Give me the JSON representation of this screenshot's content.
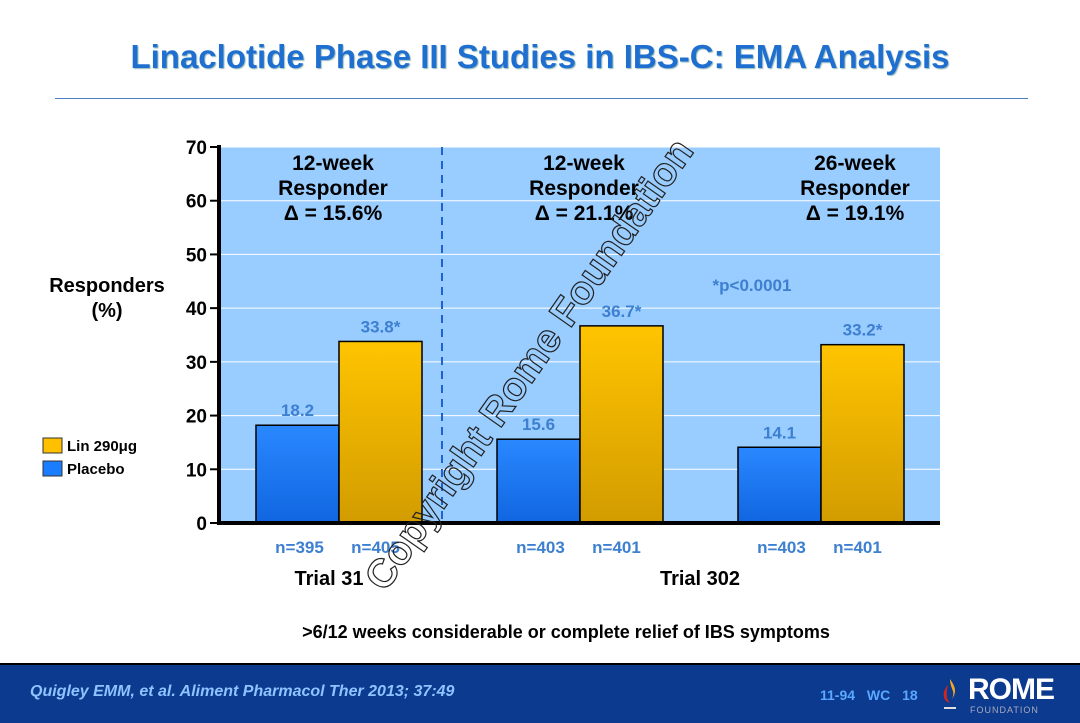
{
  "title": "Linaclotide Phase III Studies in IBS-C: EMA Analysis",
  "chart_data": {
    "type": "bar",
    "ylabel": "Responders (%)",
    "ylabel_lines": [
      "Responders",
      "(%)"
    ],
    "ylim": [
      0,
      70
    ],
    "yticks": [
      0,
      10,
      20,
      30,
      40,
      50,
      60,
      70
    ],
    "grid": true,
    "legend_placement": "left",
    "series": [
      {
        "name": "Placebo",
        "color": "#1a7cff",
        "values": [
          18.2,
          15.6,
          14.1
        ],
        "labels": [
          "18.2",
          "15.6",
          "14.1"
        ],
        "n": [
          "n=395",
          "n=403",
          "n=403"
        ]
      },
      {
        "name": "Lin 290μg",
        "color": "#ffc000",
        "values": [
          33.8,
          36.7,
          33.2
        ],
        "labels": [
          "33.8*",
          "36.7*",
          "33.2*"
        ],
        "n": [
          "n=405",
          "n=401",
          "n=401"
        ]
      }
    ],
    "groups": [
      {
        "lines": [
          "12-week",
          "Responder",
          "Δ = 15.6%"
        ]
      },
      {
        "lines": [
          "12-week",
          "Responder",
          "Δ = 21.1%"
        ]
      },
      {
        "lines": [
          "26-week",
          "Responder",
          "Δ = 19.1%"
        ]
      }
    ],
    "trial_labels": [
      "Trial 31",
      "Trial 302"
    ],
    "annotation": "*p<0.0001",
    "xlabel": ">6/12 weeks considerable or complete relief of IBS symptoms",
    "background": "#99ccff"
  },
  "watermark": "Copyright Rome Foundation",
  "footer": {
    "citation": "Quigley EMM, et al. Aliment Pharmacol Ther 2013; 37:49",
    "code": "11-94 WC 18",
    "logo_main": "ROME",
    "logo_sub": "FOUNDATION"
  }
}
